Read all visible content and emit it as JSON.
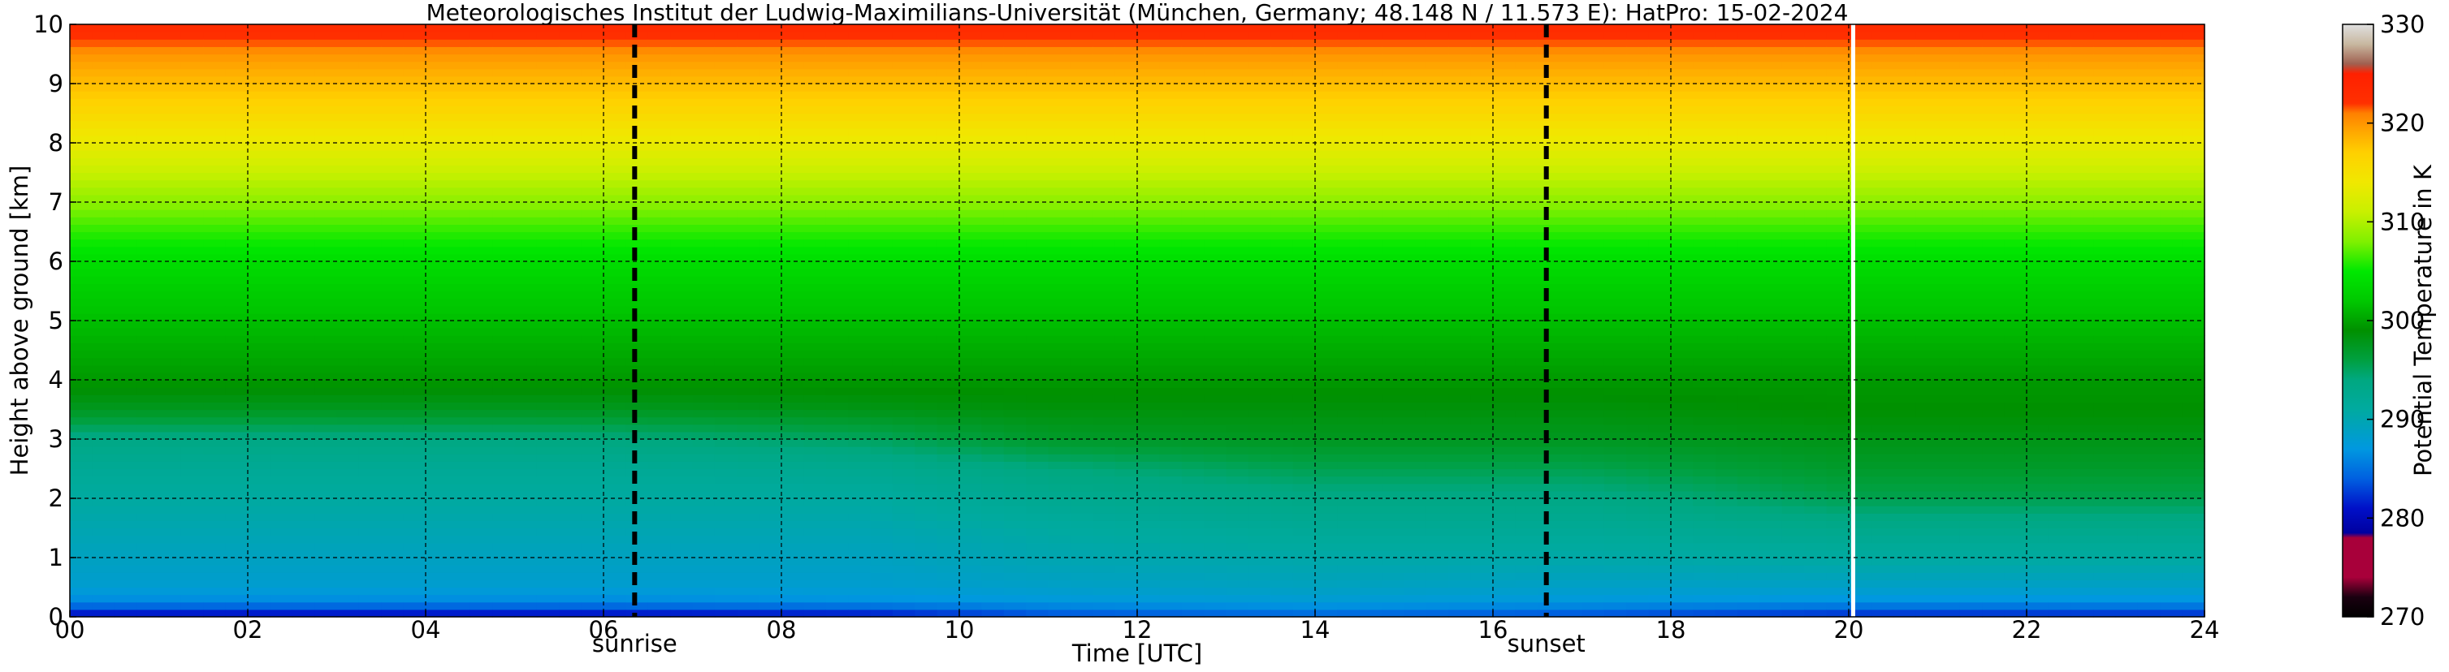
{
  "chart_data": {
    "type": "heatmap",
    "title": "Meteorologisches Institut der Ludwig-Maximilians-Universität (München, Germany; 48.148 N / 11.573 E):    HatPro: 15-02-2024",
    "xlabel": "Time [UTC]",
    "ylabel": "Height above ground [km]",
    "xlim": [
      0,
      24
    ],
    "ylim": [
      0,
      10
    ],
    "x_ticks": [
      "00",
      "02",
      "04",
      "06",
      "08",
      "10",
      "12",
      "14",
      "16",
      "18",
      "20",
      "22",
      "24"
    ],
    "y_ticks": [
      "0",
      "1",
      "2",
      "3",
      "4",
      "5",
      "6",
      "7",
      "8",
      "9",
      "10"
    ],
    "grid": true,
    "colorbar": {
      "label": "Potential Temperature in K",
      "range": [
        270,
        330
      ],
      "ticks": [
        "270",
        "280",
        "290",
        "300",
        "310",
        "320",
        "330"
      ]
    },
    "annotations": [
      {
        "x": 6.35,
        "label": "sunrise"
      },
      {
        "x": 16.6,
        "label": "sunset"
      }
    ],
    "data_gap_x": 20.05,
    "profile_heights_km": [
      0,
      0.25,
      0.5,
      1,
      1.5,
      2,
      2.5,
      3,
      3.5,
      4,
      4.5,
      5,
      5.5,
      6,
      6.5,
      7,
      7.5,
      8,
      8.5,
      9,
      9.5,
      9.75,
      10
    ],
    "profiles": [
      {
        "time": 0,
        "values": [
          280,
          286,
          288,
          289,
          290,
          291,
          292,
          293.5,
          297.5,
          299.5,
          300.5,
          301.5,
          302.5,
          304,
          306,
          308.5,
          311,
          313.5,
          316,
          318,
          320,
          322,
          323
        ]
      },
      {
        "time": 6,
        "values": [
          280,
          286,
          288,
          289,
          290,
          291,
          292,
          294,
          297.5,
          299.5,
          300.5,
          301.5,
          302.5,
          304,
          306,
          308.5,
          311,
          313.5,
          316,
          318,
          320,
          322,
          323
        ]
      },
      {
        "time": 9,
        "values": [
          280.5,
          286.5,
          288,
          289,
          290,
          291,
          292.5,
          295,
          298,
          299.5,
          300.5,
          301.5,
          302.5,
          304,
          306,
          308.5,
          311,
          313.5,
          316,
          318,
          320,
          322,
          323
        ]
      },
      {
        "time": 11,
        "values": [
          283,
          287,
          288.5,
          290,
          291,
          292.5,
          294,
          297,
          298.5,
          299.5,
          300.5,
          301.5,
          302.5,
          304,
          306,
          308.5,
          311,
          313.5,
          316,
          318,
          320,
          322,
          323
        ]
      },
      {
        "time": 14,
        "values": [
          284,
          287.5,
          289,
          290.5,
          292,
          293.5,
          295.5,
          297.5,
          298.5,
          299.5,
          300.5,
          301.5,
          302.5,
          304,
          306,
          308.5,
          311,
          313.5,
          316,
          318,
          320,
          322,
          323
        ]
      },
      {
        "time": 17,
        "values": [
          283,
          287,
          288.5,
          290.5,
          292,
          293.5,
          295.5,
          297.5,
          298.5,
          299.5,
          300.5,
          301.5,
          302.5,
          304,
          306,
          308.5,
          311,
          313.5,
          316,
          318,
          320,
          322,
          323
        ]
      },
      {
        "time": 20,
        "values": [
          281.5,
          286.5,
          288.5,
          291,
          293,
          295.5,
          297,
          298,
          299,
          299.5,
          300.5,
          301.5,
          302.5,
          304,
          306,
          308.5,
          311,
          313.5,
          316,
          318,
          320,
          322,
          323
        ]
      },
      {
        "time": 24,
        "values": [
          281.5,
          286.5,
          288.5,
          291,
          293,
          295.5,
          297,
          298,
          299,
          299.5,
          300.5,
          301.5,
          302.5,
          304,
          306,
          308.5,
          311,
          313.5,
          316,
          318,
          320,
          322,
          323
        ]
      }
    ],
    "colormap": [
      {
        "value": 270,
        "color": "#000000"
      },
      {
        "value": 272,
        "color": "#1a0010"
      },
      {
        "value": 274,
        "color": "#a8003a"
      },
      {
        "value": 278,
        "color": "#a8003a"
      },
      {
        "value": 278.5,
        "color": "#0000a0"
      },
      {
        "value": 281,
        "color": "#0010c8"
      },
      {
        "value": 284,
        "color": "#0060e0"
      },
      {
        "value": 287,
        "color": "#0098e0"
      },
      {
        "value": 291,
        "color": "#00aaa0"
      },
      {
        "value": 294,
        "color": "#00a880"
      },
      {
        "value": 296,
        "color": "#00a040"
      },
      {
        "value": 299,
        "color": "#009000"
      },
      {
        "value": 302,
        "color": "#00c800"
      },
      {
        "value": 305,
        "color": "#00e800"
      },
      {
        "value": 308,
        "color": "#80f000"
      },
      {
        "value": 311,
        "color": "#c8f000"
      },
      {
        "value": 314,
        "color": "#f0e800"
      },
      {
        "value": 317,
        "color": "#ffd000"
      },
      {
        "value": 319,
        "color": "#ffaa00"
      },
      {
        "value": 321,
        "color": "#ff8000"
      },
      {
        "value": 322,
        "color": "#ff3000"
      },
      {
        "value": 325,
        "color": "#ff2000"
      },
      {
        "value": 326,
        "color": "#a06050"
      },
      {
        "value": 328,
        "color": "#c8b8a0"
      },
      {
        "value": 330,
        "color": "#e0e0e0"
      }
    ]
  }
}
